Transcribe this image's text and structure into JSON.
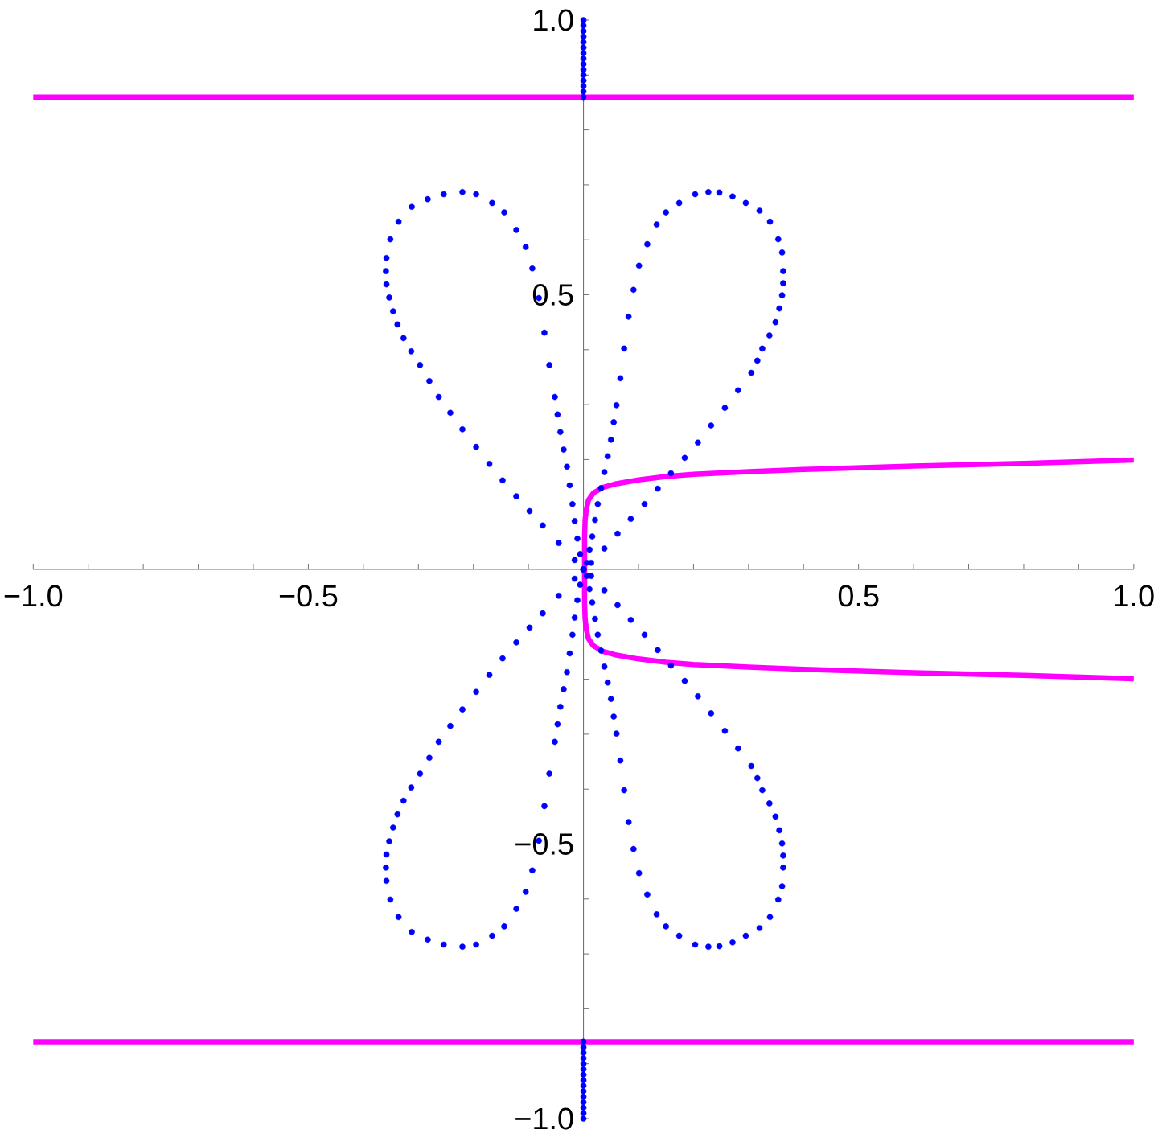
{
  "chart_data": {
    "type": "scatter",
    "xlim": [
      -1,
      1
    ],
    "ylim": [
      -1,
      1
    ],
    "xticks": [
      {
        "value": -1,
        "label": "−1.0"
      },
      {
        "value": -0.9,
        "label": null
      },
      {
        "value": -0.8,
        "label": null
      },
      {
        "value": -0.7,
        "label": null
      },
      {
        "value": -0.6,
        "label": null
      },
      {
        "value": -0.5,
        "label": "−0.5"
      },
      {
        "value": -0.4,
        "label": null
      },
      {
        "value": -0.3,
        "label": null
      },
      {
        "value": -0.2,
        "label": null
      },
      {
        "value": -0.1,
        "label": null
      },
      {
        "value": 0.1,
        "label": null
      },
      {
        "value": 0.2,
        "label": null
      },
      {
        "value": 0.3,
        "label": null
      },
      {
        "value": 0.4,
        "label": null
      },
      0.5,
      {
        "value": 0.6,
        "label": null
      },
      {
        "value": 0.7,
        "label": null
      },
      {
        "value": 0.8,
        "label": null
      },
      {
        "value": 0.9,
        "label": null
      },
      {
        "value": 1,
        "label": "1.0"
      }
    ],
    "yticks": [
      {
        "value": -1,
        "label": "−1.0"
      },
      {
        "value": -0.9,
        "label": null
      },
      {
        "value": -0.8,
        "label": null
      },
      {
        "value": -0.7,
        "label": null
      },
      {
        "value": -0.6,
        "label": null
      },
      {
        "value": -0.5,
        "label": "−0.5"
      },
      {
        "value": -0.4,
        "label": null
      },
      {
        "value": -0.3,
        "label": null
      },
      {
        "value": -0.2,
        "label": null
      },
      {
        "value": -0.1,
        "label": null
      },
      {
        "value": 0.1,
        "label": null
      },
      {
        "value": 0.2,
        "label": null
      },
      {
        "value": 0.3,
        "label": null
      },
      {
        "value": 0.4,
        "label": null
      },
      0.5,
      {
        "value": 0.6,
        "label": null
      },
      {
        "value": 0.7,
        "label": null
      },
      {
        "value": 0.8,
        "label": null
      },
      {
        "value": 0.9,
        "label": null
      },
      {
        "value": 1,
        "label": "1.0"
      }
    ],
    "series": [
      {
        "color": "#0000ff",
        "marker": "circle",
        "x": [
          0,
          0.014,
          0.038,
          0.062,
          0.086,
          0.111,
          0.135,
          0.159,
          0.184,
          0.208,
          0.232,
          0.257,
          0.281,
          0.305,
          0.316,
          0.325,
          0.338,
          0.349,
          0.356,
          0.361,
          0.363,
          0.363,
          0.361,
          0.354,
          0.339,
          0.32,
          0.295,
          0.271,
          0.247,
          0.227,
          0.203,
          0.174,
          0.15,
          0.133,
          0.116,
          0.101,
          0.091,
          0.082,
          0.074,
          0.067,
          0.06,
          0.055,
          0.05,
          0.044,
          0.038,
          0.032,
          0.026,
          0.021,
          0.016,
          0.011,
          0.006
        ],
        "values": [
          0,
          0.012,
          0.038,
          0.065,
          0.092,
          0.119,
          0.147,
          0.175,
          0.203,
          0.231,
          0.262,
          0.294,
          0.326,
          0.358,
          0.38,
          0.402,
          0.426,
          0.45,
          0.475,
          0.499,
          0.521,
          0.543,
          0.577,
          0.601,
          0.633,
          0.653,
          0.667,
          0.679,
          0.686,
          0.687,
          0.683,
          0.667,
          0.65,
          0.628,
          0.592,
          0.553,
          0.509,
          0.46,
          0.402,
          0.348,
          0.299,
          0.268,
          0.236,
          0.206,
          0.177,
          0.148,
          0.119,
          0.09,
          0.06,
          0.036,
          0.012
        ]
      },
      {
        "color": "#0000ff",
        "marker": "circle",
        "x": [
          0,
          -0.016,
          -0.045,
          -0.074,
          -0.098,
          -0.122,
          -0.147,
          -0.171,
          -0.195,
          -0.22,
          -0.242,
          -0.263,
          -0.28,
          -0.297,
          -0.313,
          -0.327,
          -0.338,
          -0.346,
          -0.353,
          -0.358,
          -0.359,
          -0.358,
          -0.351,
          -0.336,
          -0.312,
          -0.283,
          -0.254,
          -0.22,
          -0.195,
          -0.166,
          -0.144,
          -0.122,
          -0.105,
          -0.093,
          -0.081,
          -0.071,
          -0.062,
          -0.052,
          -0.047,
          -0.042,
          -0.036,
          -0.03,
          -0.025,
          -0.02,
          -0.016,
          -0.011,
          -0.006
        ],
        "values": [
          0,
          0.017,
          0.048,
          0.08,
          0.106,
          0.133,
          0.162,
          0.192,
          0.223,
          0.255,
          0.285,
          0.314,
          0.343,
          0.372,
          0.397,
          0.421,
          0.446,
          0.47,
          0.495,
          0.519,
          0.543,
          0.567,
          0.601,
          0.633,
          0.66,
          0.674,
          0.683,
          0.687,
          0.683,
          0.667,
          0.65,
          0.618,
          0.587,
          0.548,
          0.494,
          0.431,
          0.372,
          0.314,
          0.282,
          0.25,
          0.218,
          0.187,
          0.153,
          0.119,
          0.088,
          0.056,
          0.028
        ]
      },
      {
        "color": "#0000ff",
        "marker": "circle",
        "x": [
          0,
          0.014,
          0.038,
          0.062,
          0.086,
          0.111,
          0.135,
          0.159,
          0.184,
          0.208,
          0.232,
          0.257,
          0.281,
          0.305,
          0.316,
          0.325,
          0.338,
          0.349,
          0.356,
          0.361,
          0.363,
          0.363,
          0.361,
          0.354,
          0.339,
          0.32,
          0.295,
          0.271,
          0.247,
          0.227,
          0.203,
          0.174,
          0.15,
          0.133,
          0.116,
          0.101,
          0.091,
          0.082,
          0.074,
          0.067,
          0.06,
          0.055,
          0.05,
          0.044,
          0.038,
          0.032,
          0.026,
          0.021,
          0.016,
          0.011,
          0.006
        ],
        "values": [
          0,
          -0.012,
          -0.038,
          -0.065,
          -0.092,
          -0.119,
          -0.147,
          -0.175,
          -0.203,
          -0.231,
          -0.262,
          -0.294,
          -0.326,
          -0.358,
          -0.38,
          -0.402,
          -0.426,
          -0.45,
          -0.475,
          -0.499,
          -0.521,
          -0.543,
          -0.577,
          -0.601,
          -0.633,
          -0.653,
          -0.667,
          -0.679,
          -0.686,
          -0.687,
          -0.683,
          -0.667,
          -0.65,
          -0.628,
          -0.592,
          -0.553,
          -0.509,
          -0.46,
          -0.402,
          -0.348,
          -0.299,
          -0.268,
          -0.236,
          -0.206,
          -0.177,
          -0.148,
          -0.119,
          -0.09,
          -0.06,
          -0.036,
          -0.012
        ]
      },
      {
        "color": "#0000ff",
        "marker": "circle",
        "x": [
          0,
          -0.016,
          -0.045,
          -0.074,
          -0.098,
          -0.122,
          -0.147,
          -0.171,
          -0.195,
          -0.22,
          -0.242,
          -0.263,
          -0.28,
          -0.297,
          -0.313,
          -0.327,
          -0.338,
          -0.346,
          -0.353,
          -0.358,
          -0.359,
          -0.358,
          -0.351,
          -0.336,
          -0.312,
          -0.283,
          -0.254,
          -0.22,
          -0.195,
          -0.166,
          -0.144,
          -0.122,
          -0.105,
          -0.093,
          -0.081,
          -0.071,
          -0.062,
          -0.052,
          -0.047,
          -0.042,
          -0.036,
          -0.03,
          -0.025,
          -0.02,
          -0.016,
          -0.011,
          -0.006
        ],
        "values": [
          0,
          -0.017,
          -0.048,
          -0.08,
          -0.106,
          -0.133,
          -0.162,
          -0.192,
          -0.223,
          -0.255,
          -0.285,
          -0.314,
          -0.343,
          -0.372,
          -0.397,
          -0.421,
          -0.446,
          -0.47,
          -0.495,
          -0.519,
          -0.543,
          -0.567,
          -0.601,
          -0.633,
          -0.66,
          -0.674,
          -0.683,
          -0.687,
          -0.683,
          -0.667,
          -0.65,
          -0.618,
          -0.587,
          -0.548,
          -0.494,
          -0.431,
          -0.372,
          -0.314,
          -0.282,
          -0.25,
          -0.218,
          -0.187,
          -0.153,
          -0.119,
          -0.088,
          -0.056,
          -0.028
        ]
      },
      {
        "color": "#0000ff",
        "marker": "circle",
        "x": [
          0,
          0,
          0,
          0,
          0,
          0,
          0,
          0,
          0,
          0,
          0,
          0,
          0,
          0,
          0,
          0,
          0,
          0,
          0,
          0,
          0,
          0,
          0,
          0,
          0,
          0,
          0,
          0,
          0,
          0
        ],
        "values": [
          0.86,
          0.87,
          0.88,
          0.89,
          0.9,
          0.91,
          0.92,
          0.93,
          0.94,
          0.95,
          0.96,
          0.97,
          0.98,
          0.99,
          1.0,
          -0.86,
          -0.87,
          -0.88,
          -0.89,
          -0.9,
          -0.91,
          -0.92,
          -0.93,
          -0.94,
          -0.95,
          -0.96,
          -0.97,
          -0.98,
          -0.99,
          -1.0
        ]
      },
      {
        "type": "line",
        "color": "#ff00ff",
        "x": [
          -1,
          1
        ],
        "values": [
          0.86,
          0.86
        ]
      },
      {
        "type": "line",
        "color": "#ff00ff",
        "x": [
          -1,
          1
        ],
        "values": [
          -0.86,
          -0.86
        ]
      },
      {
        "type": "line",
        "color": "#ff00ff",
        "x": [
          1,
          0.8,
          0.6,
          0.4,
          0.3,
          0.2,
          0.15,
          0.1,
          0.06,
          0.035,
          0.018,
          0.009,
          0.005,
          0.003,
          0.002,
          0.002,
          0.003,
          0.005,
          0.009,
          0.018,
          0.035,
          0.06,
          0.1,
          0.15,
          0.2,
          0.3,
          0.4,
          0.6,
          0.8,
          1
        ],
        "values": [
          0.199,
          0.193,
          0.188,
          0.182,
          0.178,
          0.173,
          0.169,
          0.163,
          0.156,
          0.149,
          0.139,
          0.126,
          0.108,
          0.09,
          0.06,
          -0.06,
          -0.09,
          -0.108,
          -0.126,
          -0.139,
          -0.149,
          -0.156,
          -0.163,
          -0.169,
          -0.173,
          -0.178,
          -0.182,
          -0.188,
          -0.193,
          -0.199
        ]
      }
    ]
  }
}
